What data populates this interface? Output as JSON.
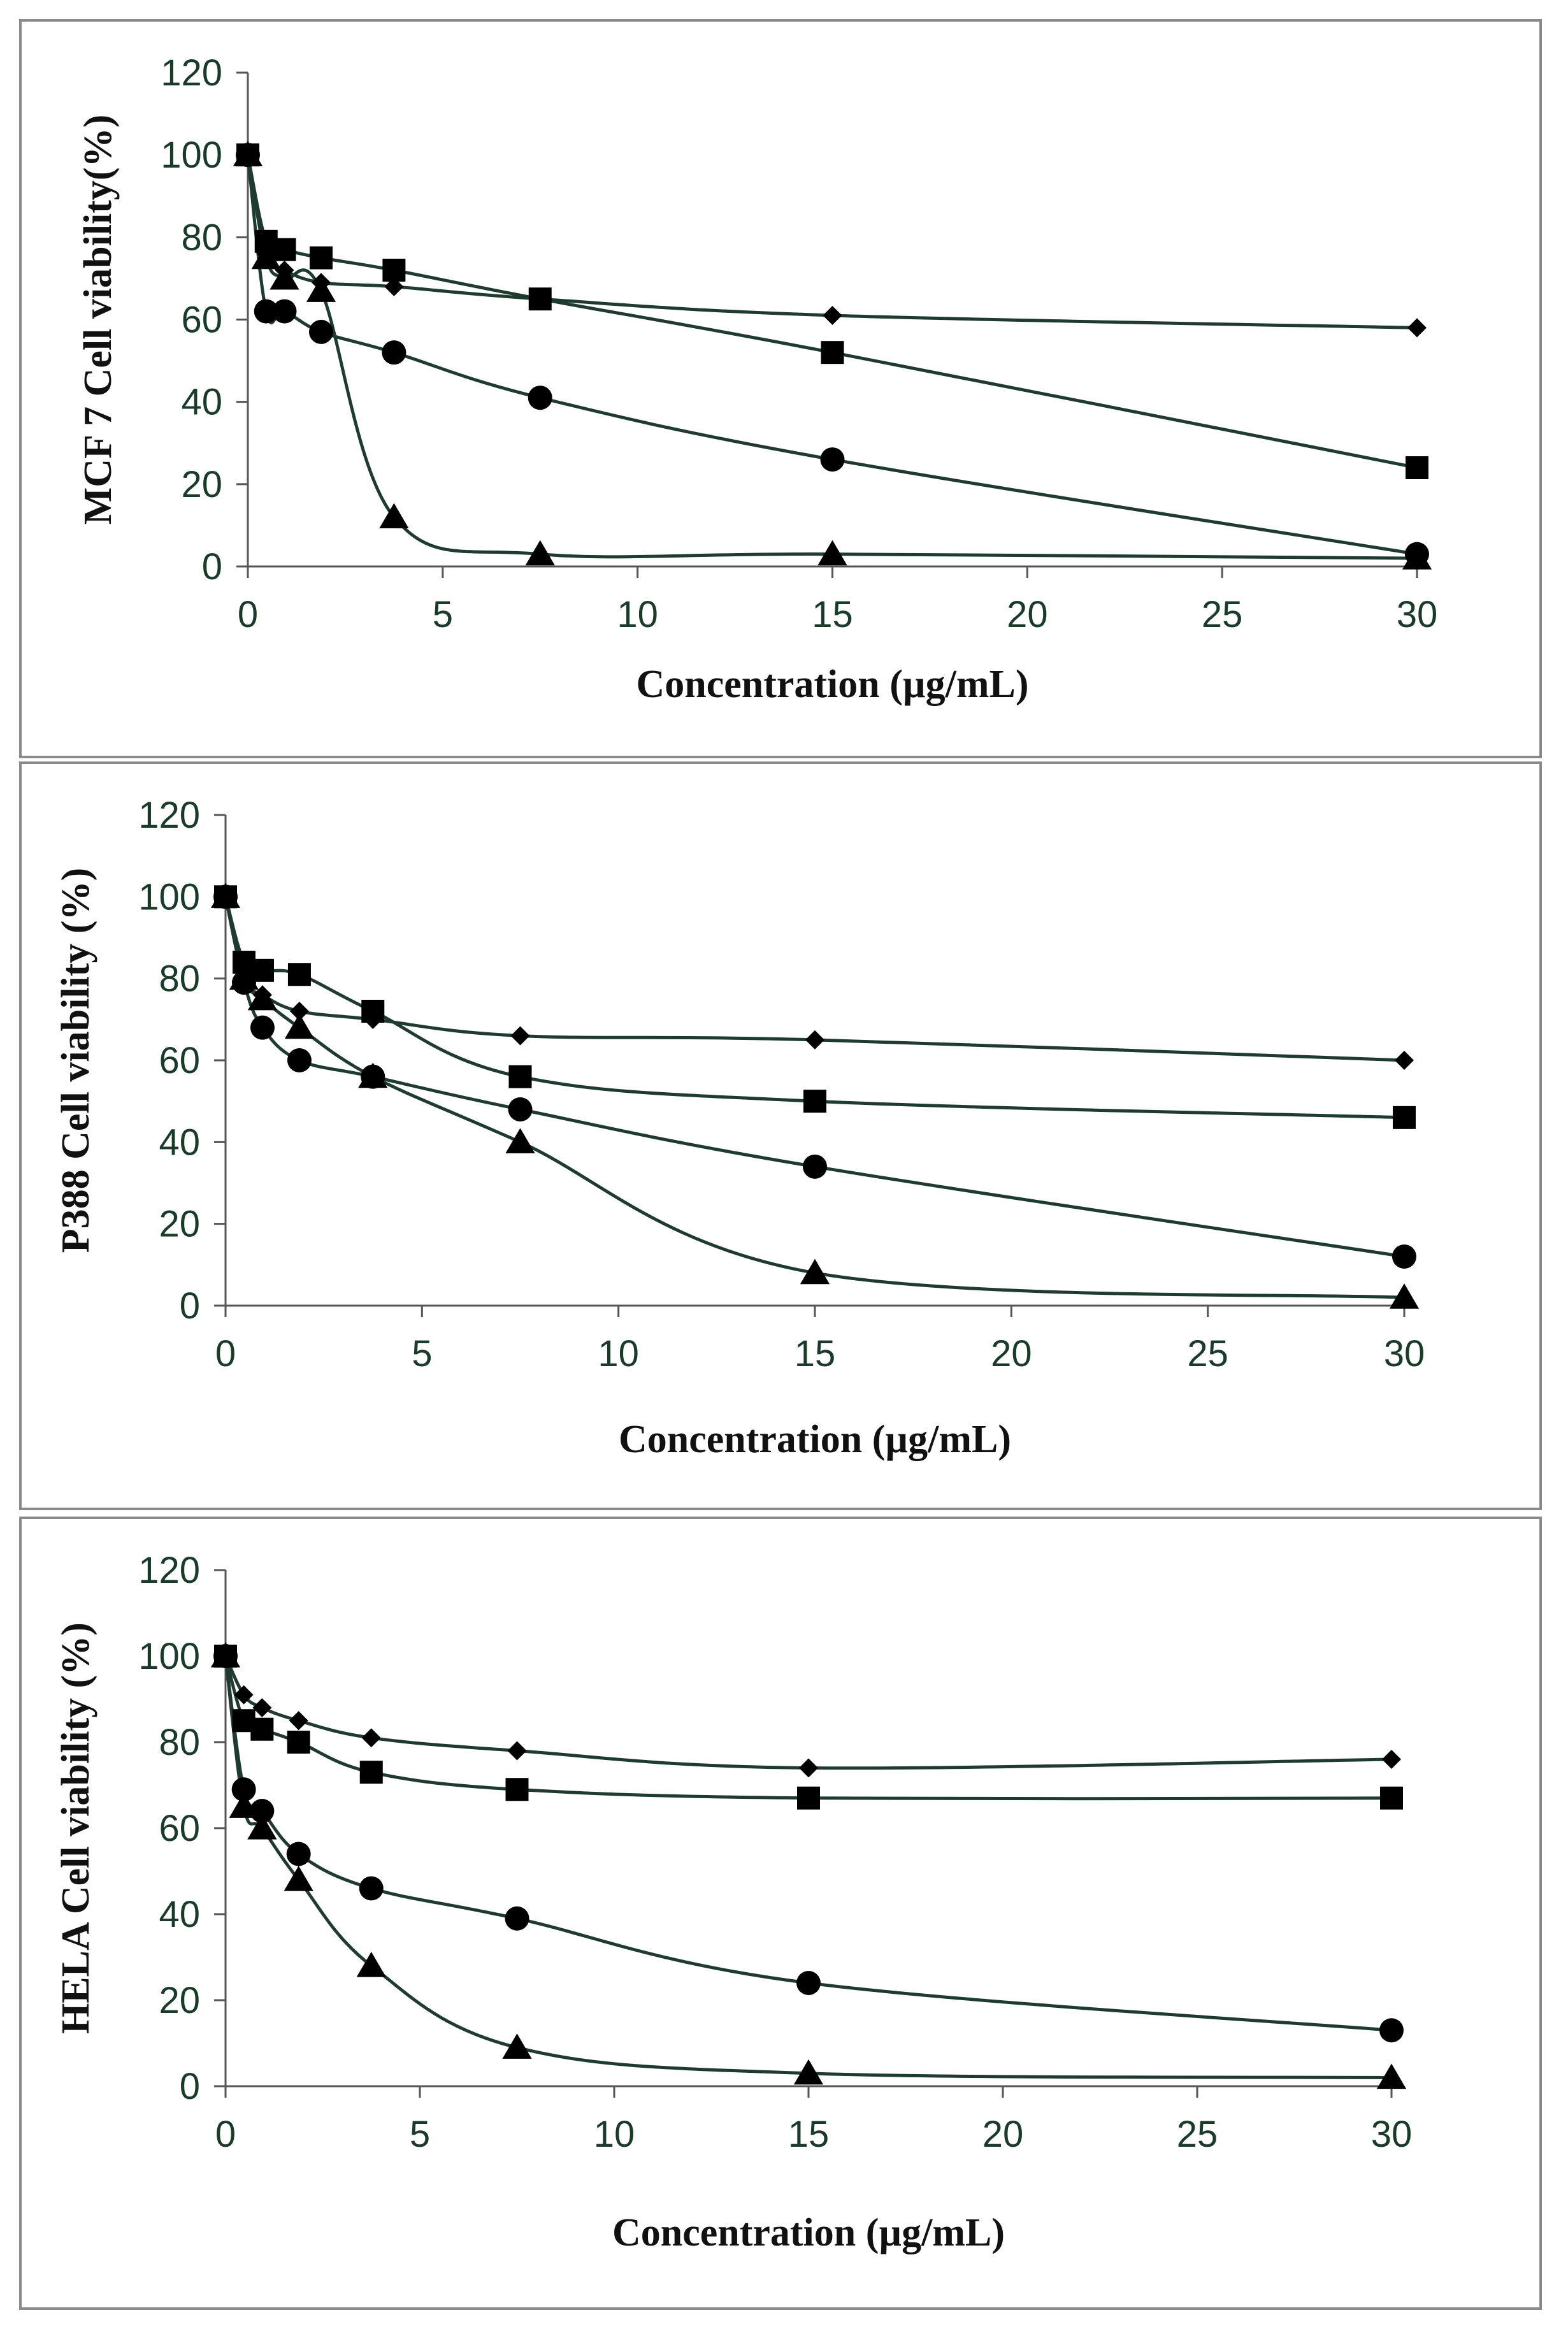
{
  "chart_data": [
    {
      "type": "line",
      "title": "",
      "xlabel": "Concentration (µg/mL)",
      "ylabel": "MCF 7 Cell viability(%)",
      "xlim": [
        0,
        30
      ],
      "ylim": [
        0,
        120
      ],
      "xticks": [
        0,
        5,
        10,
        15,
        20,
        25,
        30
      ],
      "yticks": [
        0,
        20,
        40,
        60,
        80,
        100,
        120
      ],
      "grid": false,
      "series": [
        {
          "name": "diamond",
          "marker": "diamond",
          "x": [
            0,
            0.47,
            0.94,
            1.88,
            3.75,
            7.5,
            15,
            30
          ],
          "y": [
            100,
            76,
            72,
            69,
            68,
            65,
            61,
            58
          ]
        },
        {
          "name": "square",
          "marker": "square",
          "x": [
            0,
            0.47,
            0.94,
            1.88,
            3.75,
            7.5,
            15,
            30
          ],
          "y": [
            100,
            79,
            77,
            75,
            72,
            65,
            52,
            24
          ]
        },
        {
          "name": "circle",
          "marker": "circle",
          "x": [
            0,
            0.47,
            0.94,
            1.88,
            3.75,
            7.5,
            15,
            30
          ],
          "y": [
            100,
            62,
            62,
            57,
            52,
            41,
            26,
            3
          ]
        },
        {
          "name": "triangle",
          "marker": "triangle",
          "x": [
            0,
            0.47,
            0.94,
            1.88,
            3.75,
            7.5,
            15,
            30
          ],
          "y": [
            100,
            75,
            70,
            67,
            12,
            3,
            3,
            2
          ]
        }
      ]
    },
    {
      "type": "line",
      "title": "",
      "xlabel": "Concentration (µg/mL)",
      "ylabel": "P388 Cell viability (%)",
      "xlim": [
        0,
        30
      ],
      "ylim": [
        0,
        120
      ],
      "xticks": [
        0,
        5,
        10,
        15,
        20,
        25,
        30
      ],
      "yticks": [
        0,
        20,
        40,
        60,
        80,
        100,
        120
      ],
      "grid": false,
      "series": [
        {
          "name": "diamond",
          "marker": "diamond",
          "x": [
            0,
            0.47,
            0.94,
            1.88,
            3.75,
            7.5,
            15,
            30
          ],
          "y": [
            100,
            80,
            76,
            72,
            70,
            66,
            65,
            60
          ]
        },
        {
          "name": "square",
          "marker": "square",
          "x": [
            0,
            0.47,
            0.94,
            1.88,
            3.75,
            7.5,
            15,
            30
          ],
          "y": [
            100,
            84,
            82,
            81,
            72,
            56,
            50,
            46
          ]
        },
        {
          "name": "circle",
          "marker": "circle",
          "x": [
            0,
            0.47,
            0.94,
            1.88,
            3.75,
            7.5,
            15,
            30
          ],
          "y": [
            100,
            79,
            68,
            60,
            56,
            48,
            34,
            12
          ]
        },
        {
          "name": "triangle",
          "marker": "triangle",
          "x": [
            0,
            0.47,
            0.94,
            1.88,
            3.75,
            7.5,
            15,
            30
          ],
          "y": [
            100,
            80,
            75,
            68,
            56,
            40,
            8,
            2
          ]
        }
      ]
    },
    {
      "type": "line",
      "title": "",
      "xlabel": "Concentration (µg/mL)",
      "ylabel": "HELA Cell viability (%)",
      "xlim": [
        0,
        30
      ],
      "ylim": [
        0,
        120
      ],
      "xticks": [
        0,
        5,
        10,
        15,
        20,
        25,
        30
      ],
      "yticks": [
        0,
        20,
        40,
        60,
        80,
        100,
        120
      ],
      "grid": false,
      "series": [
        {
          "name": "diamond",
          "marker": "diamond",
          "x": [
            0,
            0.47,
            0.94,
            1.88,
            3.75,
            7.5,
            15,
            30
          ],
          "y": [
            100,
            91,
            88,
            85,
            81,
            78,
            74,
            76
          ]
        },
        {
          "name": "square",
          "marker": "square",
          "x": [
            0,
            0.47,
            0.94,
            1.88,
            3.75,
            7.5,
            15,
            30
          ],
          "y": [
            100,
            85,
            83,
            80,
            73,
            69,
            67,
            67
          ]
        },
        {
          "name": "circle",
          "marker": "circle",
          "x": [
            0,
            0.47,
            0.94,
            1.88,
            3.75,
            7.5,
            15,
            30
          ],
          "y": [
            100,
            69,
            64,
            54,
            46,
            39,
            24,
            13
          ]
        },
        {
          "name": "triangle",
          "marker": "triangle",
          "x": [
            0,
            0.47,
            0.94,
            1.88,
            3.75,
            7.5,
            15,
            30
          ],
          "y": [
            100,
            65,
            60,
            48,
            28,
            9,
            3,
            2
          ]
        }
      ]
    }
  ]
}
